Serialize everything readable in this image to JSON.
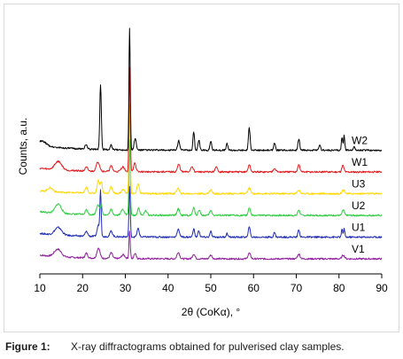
{
  "chart_data": {
    "type": "line",
    "xlabel": "2θ (CoKα), °",
    "ylabel": "Counts, a.u.",
    "xlim": [
      10,
      90
    ],
    "x_ticks": [
      10,
      20,
      30,
      40,
      50,
      60,
      70,
      80,
      90
    ],
    "grid": false,
    "legend": "series labels at right end of each trace",
    "series": [
      {
        "name": "W2",
        "color": "#000000",
        "offset": 5,
        "base": 0.25,
        "peaks": [
          [
            10.5,
            0.25,
            1.0
          ],
          [
            20.8,
            0.2,
            0.3
          ],
          [
            24.2,
            3.5,
            0.18
          ],
          [
            26.7,
            0.25,
            0.2
          ],
          [
            31.0,
            6.5,
            0.15
          ],
          [
            32.3,
            0.6,
            0.25
          ],
          [
            42.5,
            0.5,
            0.25
          ],
          [
            46.0,
            1.0,
            0.18
          ],
          [
            47.2,
            0.55,
            0.2
          ],
          [
            50.0,
            0.5,
            0.2
          ],
          [
            53.8,
            0.35,
            0.2
          ],
          [
            59.0,
            1.2,
            0.2
          ],
          [
            64.9,
            0.4,
            0.2
          ],
          [
            70.6,
            0.6,
            0.2
          ],
          [
            75.5,
            0.25,
            0.2
          ],
          [
            80.7,
            0.7,
            0.15
          ],
          [
            81.2,
            0.8,
            0.15
          ],
          [
            83.5,
            0.2,
            0.2
          ]
        ]
      },
      {
        "name": "W1",
        "color": "#e31a1c",
        "offset": 4,
        "base": 0.2,
        "peaks": [
          [
            14.3,
            0.45,
            0.8
          ],
          [
            20.9,
            0.2,
            0.3
          ],
          [
            23.6,
            0.5,
            0.4
          ],
          [
            26.7,
            0.3,
            0.3
          ],
          [
            29.4,
            0.25,
            0.4
          ],
          [
            31.0,
            5.6,
            0.15
          ],
          [
            32.2,
            0.5,
            0.25
          ],
          [
            42.5,
            0.4,
            0.3
          ],
          [
            45.6,
            0.3,
            0.3
          ],
          [
            51.3,
            0.25,
            0.3
          ],
          [
            59.0,
            0.4,
            0.25
          ],
          [
            64.9,
            0.2,
            0.3
          ],
          [
            70.6,
            0.4,
            0.25
          ],
          [
            80.9,
            0.35,
            0.25
          ]
        ]
      },
      {
        "name": "U3",
        "color": "#ffd700",
        "offset": 3,
        "base": 0.15,
        "peaks": [
          [
            12.4,
            0.2,
            0.6
          ],
          [
            20.9,
            0.3,
            0.3
          ],
          [
            23.7,
            0.7,
            0.3
          ],
          [
            24.4,
            0.6,
            0.2
          ],
          [
            26.7,
            0.35,
            0.3
          ],
          [
            29.5,
            0.2,
            0.4
          ],
          [
            31.0,
            4.8,
            0.15
          ],
          [
            33.0,
            0.55,
            0.25
          ],
          [
            42.3,
            0.3,
            0.3
          ],
          [
            50.0,
            0.2,
            0.3
          ],
          [
            59.0,
            0.3,
            0.3
          ],
          [
            70.6,
            0.2,
            0.3
          ],
          [
            81.0,
            0.2,
            0.3
          ]
        ]
      },
      {
        "name": "U2",
        "color": "#2ecc40",
        "offset": 2,
        "base": 0.2,
        "peaks": [
          [
            14.3,
            0.5,
            0.7
          ],
          [
            20.9,
            0.25,
            0.3
          ],
          [
            23.6,
            0.55,
            0.35
          ],
          [
            24.4,
            0.5,
            0.2
          ],
          [
            26.7,
            0.3,
            0.3
          ],
          [
            29.4,
            0.3,
            0.4
          ],
          [
            31.0,
            4.0,
            0.15
          ],
          [
            33.1,
            0.4,
            0.25
          ],
          [
            34.8,
            0.25,
            0.3
          ],
          [
            42.4,
            0.35,
            0.3
          ],
          [
            46.0,
            0.4,
            0.25
          ],
          [
            47.3,
            0.3,
            0.25
          ],
          [
            50.0,
            0.25,
            0.3
          ],
          [
            59.0,
            0.4,
            0.25
          ],
          [
            70.6,
            0.3,
            0.25
          ],
          [
            81.0,
            0.3,
            0.25
          ]
        ]
      },
      {
        "name": "U1",
        "color": "#1f2bb5",
        "offset": 1,
        "base": 0.2,
        "peaks": [
          [
            14.3,
            0.4,
            0.8
          ],
          [
            20.9,
            0.25,
            0.3
          ],
          [
            23.7,
            0.6,
            0.3
          ],
          [
            24.2,
            2.4,
            0.15
          ],
          [
            26.7,
            0.3,
            0.3
          ],
          [
            31.0,
            2.7,
            0.15
          ],
          [
            33.0,
            0.45,
            0.25
          ],
          [
            42.4,
            0.4,
            0.3
          ],
          [
            46.0,
            0.45,
            0.2
          ],
          [
            47.2,
            0.35,
            0.2
          ],
          [
            50.0,
            0.3,
            0.2
          ],
          [
            53.8,
            0.2,
            0.2
          ],
          [
            59.0,
            0.6,
            0.2
          ],
          [
            64.9,
            0.25,
            0.2
          ],
          [
            70.6,
            0.4,
            0.2
          ],
          [
            80.7,
            0.4,
            0.15
          ],
          [
            81.2,
            0.45,
            0.15
          ]
        ]
      },
      {
        "name": "V1",
        "color": "#8e1f9c",
        "offset": 0,
        "base": 0.2,
        "peaks": [
          [
            14.2,
            0.4,
            0.8
          ],
          [
            20.9,
            0.25,
            0.3
          ],
          [
            23.7,
            0.55,
            0.35
          ],
          [
            26.7,
            0.3,
            0.3
          ],
          [
            29.5,
            0.2,
            0.4
          ],
          [
            31.0,
            1.5,
            0.15
          ],
          [
            32.3,
            0.3,
            0.25
          ],
          [
            42.4,
            0.35,
            0.3
          ],
          [
            46.0,
            0.25,
            0.3
          ],
          [
            50.0,
            0.2,
            0.3
          ],
          [
            59.0,
            0.3,
            0.3
          ],
          [
            70.6,
            0.25,
            0.3
          ],
          [
            81.0,
            0.2,
            0.3
          ]
        ]
      }
    ]
  },
  "caption": {
    "label": "Figure 1:",
    "text": "X-ray diffractograms obtained for pulverised clay samples."
  }
}
